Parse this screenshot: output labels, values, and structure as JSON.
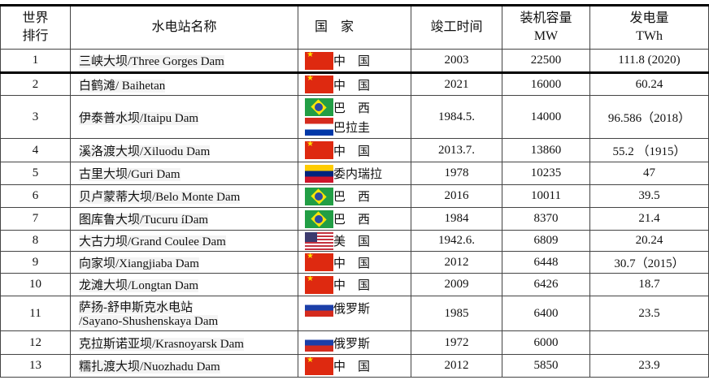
{
  "headers": {
    "rank": "世界排行",
    "rank_l1": "世界",
    "rank_l2": "排行",
    "name": "水电站名称",
    "country": "国　家",
    "year": "竣工时间",
    "capacity_l1": "装机容量",
    "capacity_l2": "MW",
    "gen_l1": "发电量",
    "gen_l2": "TWh"
  },
  "rows": [
    {
      "rank": "1",
      "name": "三峡大坝/Three Gorges Dam",
      "countries": [
        {
          "flag": "china-flag",
          "label": "中　国"
        }
      ],
      "year": "2003",
      "capacity": "22500",
      "generation": "111.8 (2020)"
    },
    {
      "rank": "2",
      "name": "白鹤滩/ Baihetan",
      "countries": [
        {
          "flag": "china-flag",
          "label": "中　国"
        }
      ],
      "year": "2021",
      "capacity": "16000",
      "generation": "60.24"
    },
    {
      "rank": "3",
      "name": "伊泰普水坝/Itaipu Dam",
      "countries": [
        {
          "flag": "brazil-flag",
          "label": "巴　西"
        },
        {
          "flag": "paraguay-flag",
          "label": "巴拉圭"
        }
      ],
      "year": "1984.5.",
      "capacity": "14000",
      "generation": "96.586（2018）"
    },
    {
      "rank": "4",
      "name": "溪洛渡大坝/Xiluodu Dam",
      "countries": [
        {
          "flag": "china-flag",
          "label": "中　国"
        }
      ],
      "year": "2013.7.",
      "capacity": "13860",
      "generation": "55.2 （1915）"
    },
    {
      "rank": "5",
      "name": "古里大坝/Guri Dam",
      "countries": [
        {
          "flag": "venezuela-flag",
          "label": "委内瑞拉"
        }
      ],
      "year": "1978",
      "capacity": "10235",
      "generation": "47"
    },
    {
      "rank": "6",
      "name": "贝卢蒙蒂大坝/Belo Monte Dam",
      "countries": [
        {
          "flag": "brazil-flag",
          "label": "巴　西"
        }
      ],
      "year": "2016",
      "capacity": "10011",
      "generation": "39.5"
    },
    {
      "rank": "7",
      "name": "图库鲁大坝/Tucuru íDam",
      "countries": [
        {
          "flag": "brazil-flag",
          "label": "巴　西"
        }
      ],
      "year": "1984",
      "capacity": "8370",
      "generation": "21.4"
    },
    {
      "rank": "8",
      "name": "大古力坝/Grand Coulee Dam",
      "countries": [
        {
          "flag": "usa-flag",
          "label": "美　国"
        }
      ],
      "year": "1942.6.",
      "capacity": "6809",
      "generation": "20.24"
    },
    {
      "rank": "9",
      "name": "向家坝/Xiangjiaba Dam",
      "countries": [
        {
          "flag": "china-flag",
          "label": "中　国"
        }
      ],
      "year": "2012",
      "capacity": "6448",
      "generation": "30.7（2015）"
    },
    {
      "rank": "10",
      "name": "龙滩大坝/Longtan Dam",
      "countries": [
        {
          "flag": "china-flag",
          "label": "中　国"
        }
      ],
      "year": "2009",
      "capacity": "6426",
      "generation": "18.7"
    },
    {
      "rank": "11",
      "name": "萨扬-舒申斯克水电站",
      "name2": "/Sayano-Shushenskaya Dam",
      "countries": [
        {
          "flag": "russia-flag",
          "label": "俄罗斯"
        }
      ],
      "year": "1985",
      "capacity": "6400",
      "generation": "23.5"
    },
    {
      "rank": "12",
      "name": "克拉斯诺亚坝/Krasnoyarsk Dam",
      "countries": [
        {
          "flag": "russia-flag",
          "label": "俄罗斯"
        }
      ],
      "year": "1972",
      "capacity": "6000",
      "generation": ""
    },
    {
      "rank": "13",
      "name": "糯扎渡大坝/Nuozhadu Dam",
      "countries": [
        {
          "flag": "china-flag",
          "label": "中　国"
        }
      ],
      "year": "2012",
      "capacity": "5850",
      "generation": "23.9"
    }
  ]
}
